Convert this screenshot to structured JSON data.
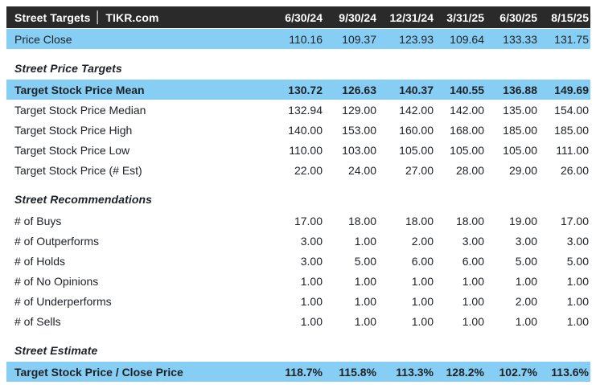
{
  "source_label": "TIKR.com",
  "colors": {
    "accent_blue": "#87cef4",
    "header_bg": "#2a2a2a",
    "text_dark": "#1d2126",
    "header_text": "#ffffff"
  },
  "table": {
    "title_left": "Street Targets",
    "title_separator": "│",
    "title_right": "TIKR.com",
    "columns": [
      "6/30/24",
      "9/30/24",
      "12/31/24",
      "3/31/25",
      "6/30/25",
      "8/15/25"
    ],
    "sections": [
      {
        "heading": "",
        "rows": [
          {
            "label": "Price Close",
            "values": [
              "110.16",
              "109.37",
              "123.93",
              "109.64",
              "133.33",
              "131.75"
            ],
            "highlight": true,
            "bold": false
          }
        ]
      },
      {
        "heading": "Street Price Targets",
        "rows": [
          {
            "label": "Target Stock Price Mean",
            "values": [
              "130.72",
              "126.63",
              "140.37",
              "140.55",
              "136.88",
              "149.69"
            ],
            "highlight": true,
            "bold": true
          },
          {
            "label": "Target Stock Price Median",
            "values": [
              "132.94",
              "129.00",
              "142.00",
              "142.00",
              "135.00",
              "154.00"
            ],
            "highlight": false,
            "bold": false
          },
          {
            "label": "Target Stock Price High",
            "values": [
              "140.00",
              "153.00",
              "160.00",
              "168.00",
              "185.00",
              "185.00"
            ],
            "highlight": false,
            "bold": false
          },
          {
            "label": "Target Stock Price Low",
            "values": [
              "110.00",
              "103.00",
              "105.00",
              "105.00",
              "105.00",
              "111.00"
            ],
            "highlight": false,
            "bold": false
          },
          {
            "label": "Target Stock Price (# Est)",
            "values": [
              "22.00",
              "24.00",
              "27.00",
              "28.00",
              "29.00",
              "26.00"
            ],
            "highlight": false,
            "bold": false
          }
        ]
      },
      {
        "heading": "Street Recommendations",
        "rows": [
          {
            "label": "# of Buys",
            "values": [
              "17.00",
              "18.00",
              "18.00",
              "18.00",
              "19.00",
              "17.00"
            ],
            "highlight": false,
            "bold": false
          },
          {
            "label": "# of Outperforms",
            "values": [
              "3.00",
              "1.00",
              "2.00",
              "3.00",
              "3.00",
              "3.00"
            ],
            "highlight": false,
            "bold": false
          },
          {
            "label": "# of Holds",
            "values": [
              "3.00",
              "5.00",
              "6.00",
              "6.00",
              "5.00",
              "5.00"
            ],
            "highlight": false,
            "bold": false
          },
          {
            "label": "# of No Opinions",
            "values": [
              "1.00",
              "1.00",
              "1.00",
              "1.00",
              "1.00",
              "1.00"
            ],
            "highlight": false,
            "bold": false
          },
          {
            "label": "# of Underperforms",
            "values": [
              "1.00",
              "1.00",
              "1.00",
              "1.00",
              "2.00",
              "1.00"
            ],
            "highlight": false,
            "bold": false
          },
          {
            "label": "# of Sells",
            "values": [
              "1.00",
              "1.00",
              "1.00",
              "1.00",
              "1.00",
              "1.00"
            ],
            "highlight": false,
            "bold": false
          }
        ]
      },
      {
        "heading": "Street Estimate",
        "rows": [
          {
            "label": "Target Stock Price / Close Price",
            "values": [
              "118.7%",
              "115.8%",
              "113.3%",
              "128.2%",
              "102.7%",
              "113.6%"
            ],
            "highlight": true,
            "bold": true
          }
        ]
      }
    ]
  },
  "chart_data": {
    "type": "table",
    "title": "Street Targets | TIKR.com",
    "categories": [
      "6/30/24",
      "9/30/24",
      "12/31/24",
      "3/31/25",
      "6/30/25",
      "8/15/25"
    ],
    "series": [
      {
        "name": "Price Close",
        "values": [
          110.16,
          109.37,
          123.93,
          109.64,
          133.33,
          131.75
        ]
      },
      {
        "name": "Target Stock Price Mean",
        "values": [
          130.72,
          126.63,
          140.37,
          140.55,
          136.88,
          149.69
        ]
      },
      {
        "name": "Target Stock Price Median",
        "values": [
          132.94,
          129.0,
          142.0,
          142.0,
          135.0,
          154.0
        ]
      },
      {
        "name": "Target Stock Price High",
        "values": [
          140.0,
          153.0,
          160.0,
          168.0,
          185.0,
          185.0
        ]
      },
      {
        "name": "Target Stock Price Low",
        "values": [
          110.0,
          103.0,
          105.0,
          105.0,
          105.0,
          111.0
        ]
      },
      {
        "name": "Target Stock Price (# Est)",
        "values": [
          22.0,
          24.0,
          27.0,
          28.0,
          29.0,
          26.0
        ]
      },
      {
        "name": "# of Buys",
        "values": [
          17.0,
          18.0,
          18.0,
          18.0,
          19.0,
          17.0
        ]
      },
      {
        "name": "# of Outperforms",
        "values": [
          3.0,
          1.0,
          2.0,
          3.0,
          3.0,
          3.0
        ]
      },
      {
        "name": "# of Holds",
        "values": [
          3.0,
          5.0,
          6.0,
          6.0,
          5.0,
          5.0
        ]
      },
      {
        "name": "# of No Opinions",
        "values": [
          1.0,
          1.0,
          1.0,
          1.0,
          1.0,
          1.0
        ]
      },
      {
        "name": "# of Underperforms",
        "values": [
          1.0,
          1.0,
          1.0,
          1.0,
          2.0,
          1.0
        ]
      },
      {
        "name": "# of Sells",
        "values": [
          1.0,
          1.0,
          1.0,
          1.0,
          1.0,
          1.0
        ]
      },
      {
        "name": "Target Stock Price / Close Price",
        "values": [
          "118.7%",
          "115.8%",
          "113.3%",
          "128.2%",
          "102.7%",
          "113.6%"
        ]
      }
    ]
  }
}
